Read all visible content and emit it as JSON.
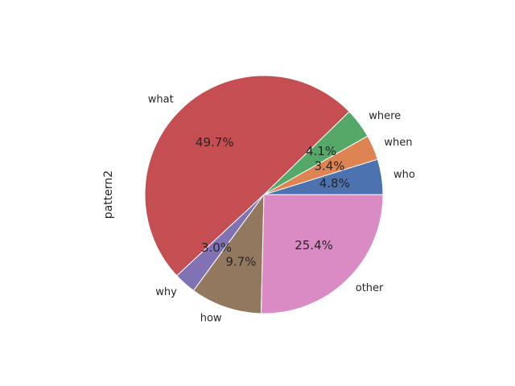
{
  "chart_data": {
    "type": "pie",
    "ylabel": "pattern2",
    "start_angle_deg": 0,
    "direction": "counterclockwise",
    "slices": [
      {
        "label": "who",
        "value": 4.8,
        "pct_text": "4.8%",
        "color": "#4c72b0"
      },
      {
        "label": "when",
        "value": 3.4,
        "pct_text": "3.4%",
        "color": "#dd8452"
      },
      {
        "label": "where",
        "value": 4.1,
        "pct_text": "4.1%",
        "color": "#55a868"
      },
      {
        "label": "what",
        "value": 49.7,
        "pct_text": "49.7%",
        "color": "#c44e52"
      },
      {
        "label": "why",
        "value": 3.0,
        "pct_text": "3.0%",
        "color": "#8172b3"
      },
      {
        "label": "how",
        "value": 9.7,
        "pct_text": "9.7%",
        "color": "#937860"
      },
      {
        "label": "other",
        "value": 25.4,
        "pct_text": "25.4%",
        "color": "#da8bc3"
      }
    ]
  }
}
